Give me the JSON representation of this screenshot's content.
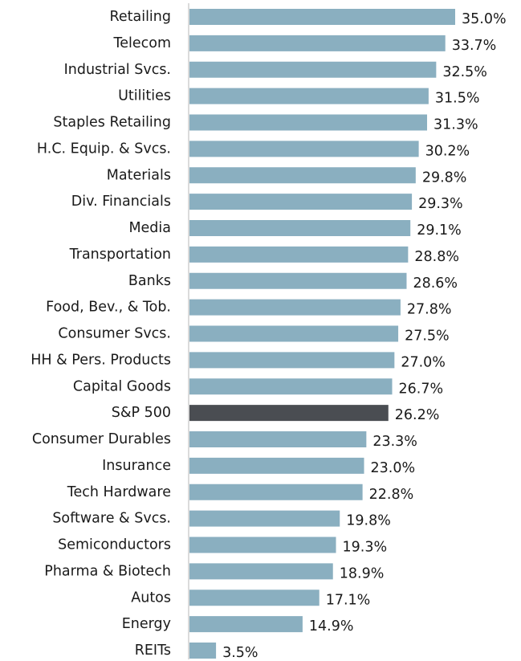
{
  "chart_data": {
    "type": "bar",
    "orientation": "horizontal",
    "categories": [
      "Retailing",
      "Telecom",
      "Industrial Svcs.",
      "Utilities",
      "Staples Retailing",
      "H.C. Equip. & Svcs.",
      "Materials",
      "Div. Financials",
      "Media",
      "Transportation",
      "Banks",
      "Food, Bev., & Tob.",
      "Consumer Svcs.",
      "HH & Pers. Products",
      "Capital Goods",
      "S&P 500",
      "Consumer Durables",
      "Insurance",
      "Tech Hardware",
      "Software & Svcs.",
      "Semiconductors",
      "Pharma & Biotech",
      "Autos",
      "Energy",
      "REITs"
    ],
    "values": [
      35.0,
      33.7,
      32.5,
      31.5,
      31.3,
      30.2,
      29.8,
      29.3,
      29.1,
      28.8,
      28.6,
      27.8,
      27.5,
      27.0,
      26.7,
      26.2,
      23.3,
      23.0,
      22.8,
      19.8,
      19.3,
      18.9,
      17.1,
      14.9,
      3.5
    ],
    "value_labels": [
      "35.0%",
      "33.7%",
      "32.5%",
      "31.5%",
      "31.3%",
      "30.2%",
      "29.8%",
      "29.3%",
      "29.1%",
      "28.8%",
      "28.6%",
      "27.8%",
      "27.5%",
      "27.0%",
      "26.7%",
      "26.2%",
      "23.3%",
      "23.0%",
      "22.8%",
      "19.8%",
      "19.3%",
      "18.9%",
      "17.1%",
      "14.9%",
      "3.5%"
    ],
    "colors": [
      "#8aafc0",
      "#8aafc0",
      "#8aafc0",
      "#8aafc0",
      "#8aafc0",
      "#8aafc0",
      "#8aafc0",
      "#8aafc0",
      "#8aafc0",
      "#8aafc0",
      "#8aafc0",
      "#8aafc0",
      "#8aafc0",
      "#8aafc0",
      "#8aafc0",
      "#4a4d52",
      "#8aafc0",
      "#8aafc0",
      "#8aafc0",
      "#8aafc0",
      "#8aafc0",
      "#8aafc0",
      "#8aafc0",
      "#8aafc0",
      "#8aafc0"
    ],
    "xlim": [
      0,
      35.0
    ]
  }
}
